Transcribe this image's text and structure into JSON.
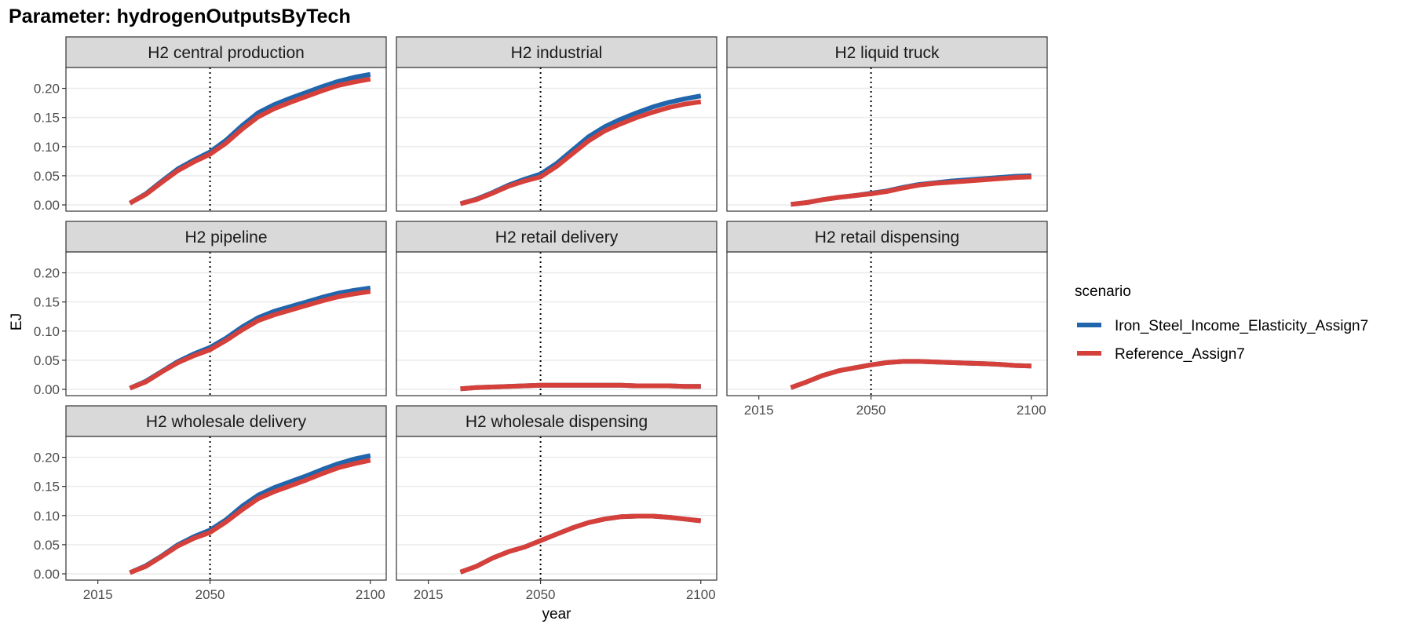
{
  "title": "Parameter: hydrogenOutputsByTech",
  "colors": {
    "series": [
      "#2166ac",
      "#d6403a"
    ],
    "strip_fill": "#d9d9d9",
    "grid": "#ebebeb",
    "panel_border": "#333333",
    "axis_text": "#4d4d4d"
  },
  "chart_data": {
    "type": "line",
    "title": "Parameter: hydrogenOutputsByTech",
    "xlabel": "year",
    "ylabel": "EJ",
    "x_ticks": [
      "2015",
      "2050",
      "2100"
    ],
    "y_ticks": [
      "0.00",
      "0.05",
      "0.10",
      "0.15",
      "0.20"
    ],
    "xlim": [
      2010,
      2100
    ],
    "ylim": [
      0,
      0.225
    ],
    "reference_line": {
      "x": 2050,
      "style": "dotted"
    },
    "grid": true,
    "facet_layout": "3 columns, free x axis labels on bottom panels",
    "legend": {
      "title": "scenario",
      "position": "right",
      "entries": [
        "Iron_Steel_Income_Elasticity_Assign7",
        "Reference_Assign7"
      ]
    },
    "years": [
      2025,
      2030,
      2035,
      2040,
      2045,
      2050,
      2055,
      2060,
      2065,
      2070,
      2075,
      2080,
      2085,
      2090,
      2095,
      2100
    ],
    "panels": [
      {
        "title": "H2 central production",
        "series": [
          {
            "name": "Iron_Steel_Income_Elasticity_Assign7",
            "values": [
              0.003,
              0.019,
              0.041,
              0.062,
              0.077,
              0.091,
              0.111,
              0.136,
              0.158,
              0.172,
              0.183,
              0.193,
              0.203,
              0.212,
              0.219,
              0.224
            ]
          },
          {
            "name": "Reference_Assign7",
            "values": [
              0.003,
              0.018,
              0.039,
              0.059,
              0.074,
              0.087,
              0.106,
              0.13,
              0.151,
              0.165,
              0.176,
              0.186,
              0.196,
              0.205,
              0.211,
              0.216
            ]
          }
        ]
      },
      {
        "title": "H2 industrial",
        "series": [
          {
            "name": "Iron_Steel_Income_Elasticity_Assign7",
            "values": [
              0.002,
              0.01,
              0.021,
              0.034,
              0.044,
              0.053,
              0.071,
              0.094,
              0.117,
              0.134,
              0.147,
              0.158,
              0.168,
              0.176,
              0.182,
              0.187
            ]
          },
          {
            "name": "Reference_Assign7",
            "values": [
              0.002,
              0.009,
              0.02,
              0.032,
              0.041,
              0.048,
              0.066,
              0.088,
              0.11,
              0.127,
              0.139,
              0.15,
              0.159,
              0.167,
              0.173,
              0.177
            ]
          }
        ]
      },
      {
        "title": "H2 liquid truck",
        "series": [
          {
            "name": "Iron_Steel_Income_Elasticity_Assign7",
            "values": [
              0.001,
              0.004,
              0.009,
              0.013,
              0.016,
              0.02,
              0.024,
              0.03,
              0.035,
              0.038,
              0.041,
              0.043,
              0.045,
              0.047,
              0.049,
              0.05
            ]
          },
          {
            "name": "Reference_Assign7",
            "values": [
              0.001,
              0.004,
              0.009,
              0.013,
              0.016,
              0.019,
              0.023,
              0.029,
              0.034,
              0.037,
              0.039,
              0.041,
              0.043,
              0.045,
              0.047,
              0.048
            ]
          }
        ]
      },
      {
        "title": "H2 pipeline",
        "series": [
          {
            "name": "Iron_Steel_Income_Elasticity_Assign7",
            "values": [
              0.002,
              0.014,
              0.031,
              0.048,
              0.061,
              0.072,
              0.088,
              0.107,
              0.123,
              0.134,
              0.142,
              0.15,
              0.158,
              0.165,
              0.17,
              0.174
            ]
          },
          {
            "name": "Reference_Assign7",
            "values": [
              0.002,
              0.013,
              0.03,
              0.046,
              0.058,
              0.068,
              0.084,
              0.102,
              0.118,
              0.128,
              0.136,
              0.144,
              0.152,
              0.159,
              0.164,
              0.168
            ]
          }
        ]
      },
      {
        "title": "H2 retail delivery",
        "series": [
          {
            "name": "Iron_Steel_Income_Elasticity_Assign7",
            "values": [
              0.001,
              0.003,
              0.004,
              0.005,
              0.006,
              0.007,
              0.007,
              0.007,
              0.007,
              0.007,
              0.007,
              0.006,
              0.006,
              0.006,
              0.005,
              0.005
            ]
          },
          {
            "name": "Reference_Assign7",
            "values": [
              0.001,
              0.003,
              0.004,
              0.005,
              0.006,
              0.007,
              0.007,
              0.007,
              0.007,
              0.007,
              0.007,
              0.006,
              0.006,
              0.006,
              0.005,
              0.005
            ]
          }
        ]
      },
      {
        "title": "H2 retail dispensing",
        "series": [
          {
            "name": "Iron_Steel_Income_Elasticity_Assign7",
            "values": [
              0.003,
              0.013,
              0.024,
              0.032,
              0.037,
              0.042,
              0.046,
              0.048,
              0.048,
              0.047,
              0.046,
              0.045,
              0.044,
              0.043,
              0.041,
              0.04
            ]
          },
          {
            "name": "Reference_Assign7",
            "values": [
              0.003,
              0.013,
              0.024,
              0.032,
              0.037,
              0.042,
              0.046,
              0.048,
              0.048,
              0.047,
              0.046,
              0.045,
              0.044,
              0.043,
              0.041,
              0.04
            ]
          }
        ]
      },
      {
        "title": "H2 wholesale delivery",
        "series": [
          {
            "name": "Iron_Steel_Income_Elasticity_Assign7",
            "values": [
              0.002,
              0.014,
              0.031,
              0.05,
              0.064,
              0.075,
              0.093,
              0.116,
              0.135,
              0.148,
              0.158,
              0.168,
              0.179,
              0.189,
              0.197,
              0.203
            ]
          },
          {
            "name": "Reference_Assign7",
            "values": [
              0.002,
              0.013,
              0.03,
              0.048,
              0.061,
              0.071,
              0.089,
              0.11,
              0.129,
              0.141,
              0.151,
              0.161,
              0.172,
              0.182,
              0.189,
              0.195
            ]
          }
        ]
      },
      {
        "title": "H2 wholesale dispensing",
        "series": [
          {
            "name": "Iron_Steel_Income_Elasticity_Assign7",
            "values": [
              0.003,
              0.013,
              0.027,
              0.038,
              0.046,
              0.057,
              0.068,
              0.079,
              0.088,
              0.094,
              0.098,
              0.099,
              0.099,
              0.097,
              0.094,
              0.091
            ]
          },
          {
            "name": "Reference_Assign7",
            "values": [
              0.003,
              0.013,
              0.027,
              0.038,
              0.046,
              0.057,
              0.068,
              0.079,
              0.088,
              0.094,
              0.098,
              0.099,
              0.099,
              0.097,
              0.094,
              0.091
            ]
          }
        ]
      }
    ]
  }
}
